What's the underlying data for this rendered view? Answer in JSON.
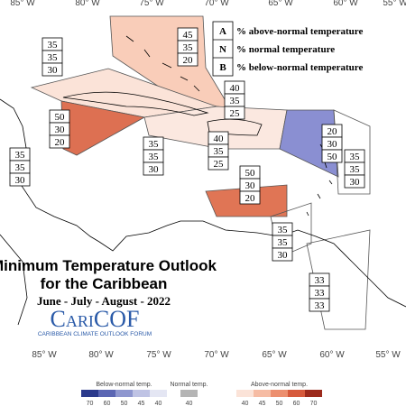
{
  "longitude_labels_top": [
    "85° W",
    "80° W",
    "75° W",
    "70° W",
    "65° W",
    "60° W",
    "55° W"
  ],
  "longitude_labels_bottom": [
    "85° W",
    "80° W",
    "75° W",
    "70° W",
    "65° W",
    "60° W",
    "55° W"
  ],
  "legend": [
    {
      "key": "A",
      "text": "% above-normal temperature"
    },
    {
      "key": "N",
      "text": "% normal temperature"
    },
    {
      "key": "B",
      "text": "% below-normal temperature"
    }
  ],
  "regions": [
    [
      45,
      35,
      20
    ],
    [
      35,
      35,
      30
    ],
    [
      50,
      30,
      20
    ],
    [
      40,
      35,
      25
    ],
    [
      35,
      35,
      30
    ],
    [
      35,
      35,
      30
    ],
    [
      40,
      35,
      25
    ],
    [
      20,
      30,
      50
    ],
    [
      35,
      35,
      30
    ],
    [
      50,
      30,
      20
    ],
    [
      35,
      35,
      30
    ],
    [
      33,
      33,
      33
    ]
  ],
  "title": {
    "line1": "Minimum Temperature Outlook",
    "line2": "for the Caribbean",
    "season": "June - July - August - 2022"
  },
  "logo": {
    "name": "CariCOF",
    "tagline": "CARIBBEAN CLIMATE OUTLOOK FORUM"
  },
  "colorbar": {
    "below": {
      "label": "Below-normal temp.",
      "ticks": [
        70,
        60,
        50,
        45,
        40
      ]
    },
    "normal": {
      "label": "Normal temp.",
      "ticks": [
        40
      ]
    },
    "above": {
      "label": "Above-normal temp.",
      "ticks": [
        40,
        45,
        50,
        60,
        70
      ]
    }
  }
}
